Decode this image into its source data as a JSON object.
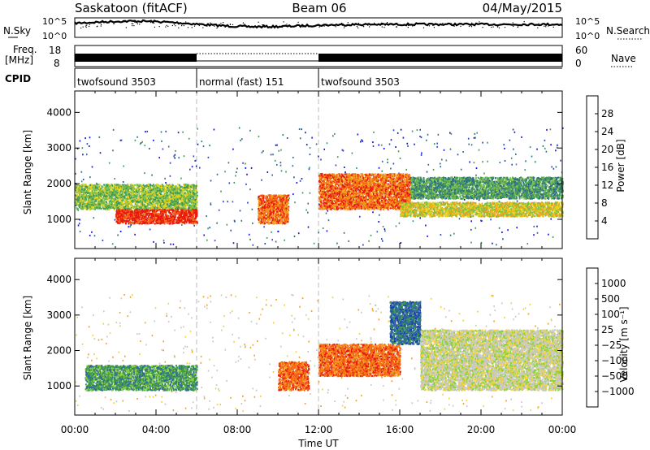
{
  "header": {
    "title": "Saskatoon (fitACF)",
    "beam": "Beam 06",
    "date": "04/May/2015"
  },
  "summary": {
    "nsky_label": "N.Sky",
    "nsearch_label": "N.Search",
    "freq_label_line1": "Freq.",
    "freq_label_line2": "[MHz]",
    "nave_label": "Nave",
    "cpid_label": "CPID",
    "noise_ticks": [
      "10^5",
      "10^0"
    ],
    "freq_ticks": [
      "18",
      "8"
    ],
    "nave_ticks": [
      "60",
      "0"
    ],
    "cpid_segments": [
      {
        "label": "twofsound 3503",
        "start": 0,
        "end": 6
      },
      {
        "label": "normal (fast) 151",
        "start": 6,
        "end": 12
      },
      {
        "label": "twofsound 3503",
        "start": 12,
        "end": 24
      }
    ]
  },
  "chart_data": [
    {
      "type": "heatmap",
      "name": "power",
      "ylabel": "Slant Range [km]",
      "xlim": [
        0,
        24
      ],
      "ylim": [
        180,
        4600
      ],
      "ytick_labels": [
        "1000",
        "2000",
        "3000",
        "4000"
      ],
      "yticks": [
        1000,
        2000,
        3000,
        4000
      ],
      "colorbar": {
        "label": "Power [dB]",
        "range": [
          0,
          32
        ],
        "ticks": [
          4,
          8,
          12,
          16,
          20,
          24,
          28
        ],
        "colors": [
          "#1010e6",
          "#2a46c2",
          "#2f6e86",
          "#3f9a5a",
          "#7cc04a",
          "#e6d21c",
          "#f0a21a",
          "#f46a14",
          "#e81a10"
        ]
      },
      "features": [
        {
          "t": [
            0.0,
            6.0
          ],
          "range": [
            1300,
            2000
          ],
          "value": 16
        },
        {
          "t": [
            2.0,
            6.0
          ],
          "range": [
            900,
            1300
          ],
          "value": 30
        },
        {
          "t": [
            9.0,
            10.5
          ],
          "range": [
            900,
            1700
          ],
          "value": 26
        },
        {
          "t": [
            12.0,
            16.5
          ],
          "range": [
            1300,
            2300
          ],
          "value": 26
        },
        {
          "t": [
            16.0,
            24.0
          ],
          "range": [
            1100,
            1500
          ],
          "value": 20
        },
        {
          "t": [
            16.5,
            24.0
          ],
          "range": [
            1600,
            2200
          ],
          "value": 10
        }
      ]
    },
    {
      "type": "heatmap",
      "name": "velocity",
      "ylabel": "Slant Range [km]",
      "xlabel": "Time UT",
      "xlim": [
        0,
        24
      ],
      "ylim": [
        180,
        4600
      ],
      "xtick_labels": [
        "00:00",
        "04:00",
        "08:00",
        "12:00",
        "16:00",
        "20:00",
        "00:00"
      ],
      "xticks": [
        0,
        4,
        8,
        12,
        16,
        20,
        24
      ],
      "ytick_labels": [
        "1000",
        "2000",
        "3000",
        "4000"
      ],
      "yticks": [
        1000,
        2000,
        3000,
        4000
      ],
      "colorbar": {
        "label": "Velocity [m s⁻¹]",
        "tick_labels": [
          "1000",
          "500",
          "100",
          "25",
          "−25",
          "−100",
          "−500",
          "−1000"
        ],
        "colors": [
          "#1a3ab8",
          "#2e6a9c",
          "#3f9a4a",
          "#8cd23a",
          "#c8c8c8",
          "#f4d23a",
          "#f5a020",
          "#f46a14",
          "#e81a10"
        ]
      },
      "features": [
        {
          "t": [
            0.5,
            6.0
          ],
          "range": [
            900,
            1600
          ],
          "value": 100
        },
        {
          "t": [
            10.0,
            11.5
          ],
          "range": [
            900,
            1700
          ],
          "value": -500
        },
        {
          "t": [
            12.0,
            16.0
          ],
          "range": [
            1300,
            2200
          ],
          "value": -500
        },
        {
          "t": [
            15.5,
            17.0
          ],
          "range": [
            2200,
            3400
          ],
          "value": 500
        },
        {
          "t": [
            17.0,
            24.0
          ],
          "range": [
            900,
            2600
          ],
          "value": 0
        }
      ]
    }
  ]
}
